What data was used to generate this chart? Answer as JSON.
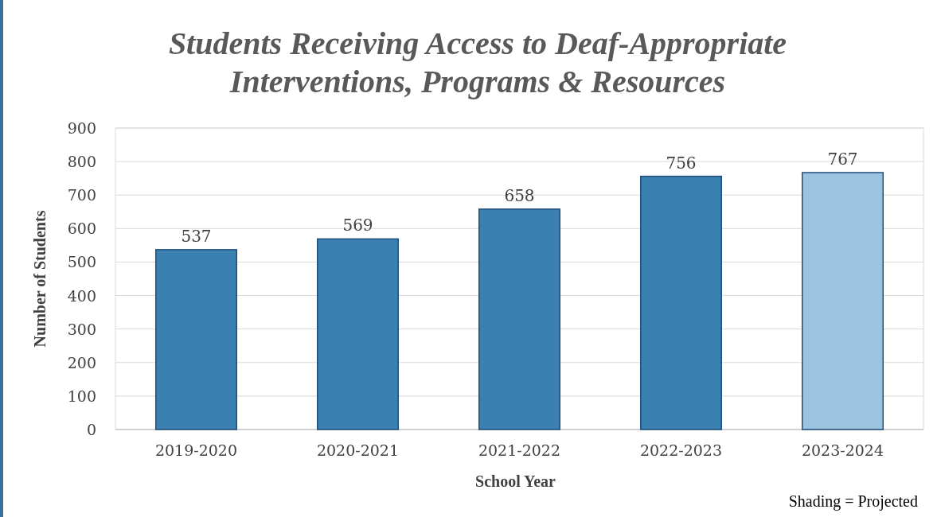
{
  "chart_data": {
    "type": "bar",
    "title": "Students Receiving Access to Deaf-Appropriate Interventions, Programs & Resources",
    "xlabel": "School Year",
    "ylabel": "Number of Students",
    "categories": [
      "2019-2020",
      "2020-2021",
      "2021-2022",
      "2022-2023",
      "2023-2024"
    ],
    "values": [
      537,
      569,
      658,
      756,
      767
    ],
    "colors": [
      "#3a80b0",
      "#3a80b0",
      "#3a80b0",
      "#3a80b0",
      "#9cc3e0"
    ],
    "ylim": [
      0,
      900
    ],
    "yticks": [
      0,
      100,
      200,
      300,
      400,
      500,
      600,
      700,
      800,
      900
    ],
    "grid": "y",
    "data_labels": true,
    "annotations": [
      "Shading = Projected"
    ]
  }
}
